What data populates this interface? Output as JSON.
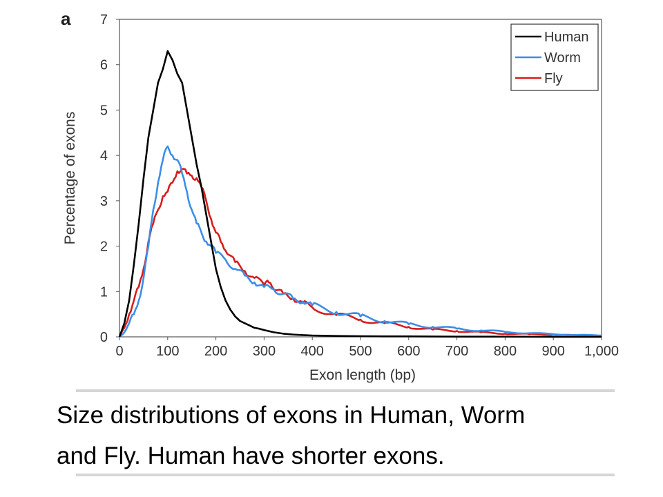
{
  "panel_label": "a",
  "caption": {
    "line1": "Size distributions of exons in Human, Worm",
    "line2": "and Fly.  Human have shorter exons."
  },
  "colors": {
    "Human": "#000000",
    "Worm": "#3a8ee8",
    "Fly": "#d81c1c"
  },
  "chart_data": {
    "type": "line",
    "xlabel": "Exon length (bp)",
    "ylabel": "Percentage of exons",
    "xlim": [
      0,
      1000
    ],
    "ylim": [
      0,
      7
    ],
    "xticks": [
      0,
      100,
      200,
      300,
      400,
      500,
      600,
      700,
      800,
      900,
      1000
    ],
    "xtick_labels": [
      "0",
      "100",
      "200",
      "300",
      "400",
      "500",
      "600",
      "700",
      "800",
      "900",
      "1,000"
    ],
    "yticks": [
      0,
      1,
      2,
      3,
      4,
      5,
      6,
      7
    ],
    "ytick_labels": [
      "0",
      "1",
      "2",
      "3",
      "4",
      "5",
      "6",
      "7"
    ],
    "legend_position": "top-right",
    "grid": false,
    "series": [
      {
        "name": "Human",
        "x": [
          0,
          10,
          20,
          30,
          40,
          50,
          60,
          70,
          80,
          90,
          100,
          110,
          120,
          130,
          140,
          150,
          160,
          170,
          180,
          190,
          200,
          210,
          220,
          230,
          240,
          250,
          260,
          270,
          280,
          290,
          300,
          320,
          340,
          360,
          380,
          400,
          450,
          500,
          550,
          600,
          700,
          800,
          900,
          1000
        ],
        "y": [
          0,
          0.3,
          0.8,
          1.6,
          2.5,
          3.5,
          4.4,
          5.0,
          5.6,
          5.9,
          6.3,
          6.1,
          5.8,
          5.6,
          5.0,
          4.4,
          3.8,
          3.3,
          2.7,
          2.1,
          1.5,
          1.1,
          0.8,
          0.6,
          0.45,
          0.35,
          0.3,
          0.25,
          0.2,
          0.18,
          0.15,
          0.1,
          0.07,
          0.05,
          0.04,
          0.03,
          0.02,
          0.015,
          0.01,
          0.01,
          0.005,
          0.005,
          0.0,
          0.0
        ]
      },
      {
        "name": "Worm",
        "x": [
          0,
          10,
          20,
          30,
          40,
          50,
          60,
          70,
          80,
          90,
          100,
          110,
          120,
          130,
          140,
          150,
          160,
          170,
          180,
          190,
          200,
          220,
          240,
          260,
          280,
          300,
          320,
          340,
          360,
          380,
          400,
          450,
          500,
          550,
          600,
          650,
          700,
          750,
          800,
          850,
          900,
          950,
          1000
        ],
        "y": [
          0,
          0.1,
          0.3,
          0.5,
          0.8,
          1.3,
          2.0,
          2.8,
          3.4,
          3.9,
          4.2,
          4.0,
          3.9,
          3.6,
          3.2,
          2.8,
          2.5,
          2.3,
          2.1,
          2.0,
          1.85,
          1.7,
          1.5,
          1.35,
          1.2,
          1.1,
          1.05,
          0.95,
          0.85,
          0.78,
          0.7,
          0.55,
          0.45,
          0.35,
          0.28,
          0.22,
          0.18,
          0.14,
          0.11,
          0.08,
          0.06,
          0.04,
          0.03
        ]
      },
      {
        "name": "Fly",
        "x": [
          0,
          10,
          20,
          30,
          40,
          50,
          60,
          70,
          80,
          90,
          100,
          110,
          120,
          130,
          140,
          150,
          160,
          170,
          180,
          190,
          200,
          210,
          220,
          240,
          260,
          280,
          300,
          310,
          320,
          340,
          360,
          380,
          400,
          450,
          500,
          550,
          600,
          650,
          700,
          750,
          800,
          850,
          900,
          950,
          1000
        ],
        "y": [
          0,
          0.2,
          0.5,
          0.8,
          1.1,
          1.5,
          2.1,
          2.5,
          2.8,
          3.1,
          3.2,
          3.4,
          3.65,
          3.7,
          3.6,
          3.55,
          3.5,
          3.3,
          3.0,
          2.6,
          2.3,
          2.1,
          1.9,
          1.65,
          1.45,
          1.3,
          1.15,
          1.2,
          1.05,
          0.95,
          0.85,
          0.75,
          0.65,
          0.48,
          0.38,
          0.3,
          0.22,
          0.16,
          0.13,
          0.1,
          0.07,
          0.06,
          0.05,
          0.03,
          0.02
        ]
      }
    ]
  }
}
